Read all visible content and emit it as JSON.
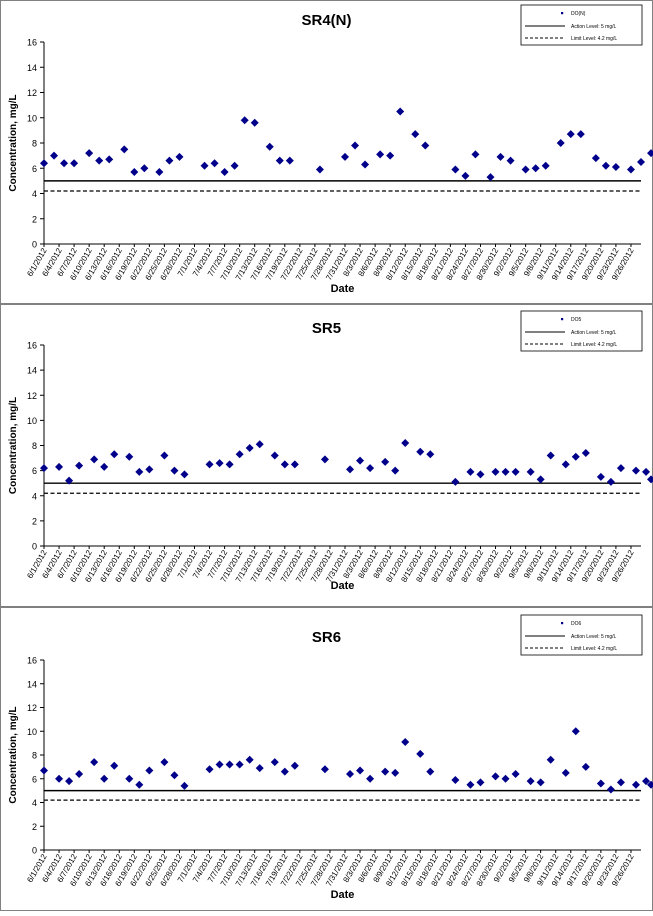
{
  "tick_dates": [
    "6/1/2012",
    "6/4/2012",
    "6/7/2012",
    "6/10/2012",
    "6/13/2012",
    "6/16/2012",
    "6/19/2012",
    "6/22/2012",
    "6/25/2012",
    "6/28/2012",
    "7/1/2012",
    "7/4/2012",
    "7/7/2012",
    "7/10/2012",
    "7/13/2012",
    "7/16/2012",
    "7/19/2012",
    "7/22/2012",
    "7/25/2012",
    "7/28/2012",
    "7/31/2012",
    "8/3/2012",
    "8/6/2012",
    "8/9/2012",
    "8/12/2012",
    "8/15/2012",
    "8/18/2012",
    "8/21/2012",
    "8/24/2012",
    "8/27/2012",
    "8/30/2012",
    "9/2/2012",
    "9/5/2012",
    "9/8/2012",
    "9/11/2012",
    "9/14/2012",
    "9/17/2012",
    "9/20/2012",
    "9/23/2012",
    "9/26/2012"
  ],
  "colors": {
    "marker": "#00008b",
    "action_line": "#000000",
    "limit_line": "#000000",
    "frame": "#808080"
  },
  "chart_data": [
    {
      "type": "scatter",
      "title": "SR4(N)",
      "xlabel": "Date",
      "ylabel": "Concentration, mg/L",
      "ylim": [
        0,
        16
      ],
      "yticks": [
        0,
        2,
        4,
        6,
        8,
        10,
        12,
        14,
        16
      ],
      "x_range_days": [
        0,
        119
      ],
      "grid": false,
      "legend": {
        "position": "top-right",
        "entries": [
          "DO(N)",
          "Action Level: 5 mg/L",
          "Limit Level: 4.2 mg/L"
        ]
      },
      "action_level": 5,
      "limit_level": 4.2,
      "series": [
        {
          "name": "DO(N)",
          "x": [
            "6/1/2012",
            "6/3/2012",
            "6/5/2012",
            "6/7/2012",
            "6/10/2012",
            "6/12/2012",
            "6/14/2012",
            "6/17/2012",
            "6/19/2012",
            "6/21/2012",
            "6/24/2012",
            "6/26/2012",
            "6/28/2012",
            "7/3/2012",
            "7/5/2012",
            "7/7/2012",
            "7/9/2012",
            "7/11/2012",
            "7/13/2012",
            "7/16/2012",
            "7/18/2012",
            "7/20/2012",
            "7/26/2012",
            "7/31/2012",
            "8/2/2012",
            "8/4/2012",
            "8/7/2012",
            "8/9/2012",
            "8/11/2012",
            "8/14/2012",
            "8/16/2012",
            "8/22/2012",
            "8/24/2012",
            "8/26/2012",
            "8/29/2012",
            "8/31/2012",
            "9/2/2012",
            "9/5/2012",
            "9/7/2012",
            "9/9/2012",
            "9/12/2012",
            "9/14/2012",
            "9/16/2012",
            "9/19/2012",
            "9/21/2012",
            "9/23/2012",
            "9/26/2012",
            "9/28/2012",
            "9/30/2012"
          ],
          "y": [
            6.4,
            7.0,
            6.4,
            6.4,
            7.2,
            6.6,
            6.7,
            7.5,
            5.7,
            6.0,
            5.7,
            6.6,
            6.9,
            6.2,
            6.4,
            5.7,
            6.2,
            9.8,
            9.6,
            7.7,
            6.6,
            6.6,
            5.9,
            6.9,
            7.8,
            6.3,
            7.1,
            7.0,
            10.5,
            8.7,
            7.8,
            5.9,
            5.4,
            7.1,
            5.3,
            6.9,
            6.6,
            5.9,
            6.0,
            6.2,
            8.0,
            8.7,
            8.7,
            6.8,
            6.2,
            6.1,
            5.9,
            6.5,
            7.2
          ]
        }
      ]
    },
    {
      "type": "scatter",
      "title": "SR5",
      "xlabel": "Date",
      "ylabel": "Concentration, mg/L",
      "ylim": [
        0,
        16
      ],
      "yticks": [
        0,
        2,
        4,
        6,
        8,
        10,
        12,
        14,
        16
      ],
      "x_range_days": [
        0,
        119
      ],
      "grid": false,
      "legend": {
        "position": "top-right",
        "entries": [
          "DO5",
          "Action Level: 5 mg/L",
          "Limit Level: 4.2 mg/L"
        ]
      },
      "action_level": 5,
      "limit_level": 4.2,
      "series": [
        {
          "name": "DO5",
          "x": [
            "6/1/2012",
            "6/4/2012",
            "6/6/2012",
            "6/8/2012",
            "6/11/2012",
            "6/13/2012",
            "6/15/2012",
            "6/18/2012",
            "6/20/2012",
            "6/22/2012",
            "6/25/2012",
            "6/27/2012",
            "6/29/2012",
            "7/4/2012",
            "7/6/2012",
            "7/8/2012",
            "7/10/2012",
            "7/12/2012",
            "7/14/2012",
            "7/17/2012",
            "7/19/2012",
            "7/21/2012",
            "7/27/2012",
            "8/1/2012",
            "8/3/2012",
            "8/5/2012",
            "8/8/2012",
            "8/10/2012",
            "8/12/2012",
            "8/15/2012",
            "8/17/2012",
            "8/22/2012",
            "8/25/2012",
            "8/27/2012",
            "8/30/2012",
            "9/1/2012",
            "9/3/2012",
            "9/6/2012",
            "9/8/2012",
            "9/10/2012",
            "9/13/2012",
            "9/15/2012",
            "9/17/2012",
            "9/20/2012",
            "9/22/2012",
            "9/24/2012",
            "9/27/2012",
            "9/29/2012",
            "9/30/2012"
          ],
          "y": [
            6.2,
            6.3,
            5.2,
            6.4,
            6.9,
            6.3,
            7.3,
            7.1,
            5.9,
            6.1,
            7.2,
            6.0,
            5.7,
            6.5,
            6.6,
            6.5,
            7.3,
            7.8,
            8.1,
            7.2,
            6.5,
            6.5,
            6.9,
            6.1,
            6.8,
            6.2,
            6.7,
            6.0,
            8.2,
            7.5,
            7.3,
            5.1,
            5.9,
            5.7,
            5.9,
            5.9,
            5.9,
            5.9,
            5.3,
            7.2,
            6.5,
            7.1,
            7.4,
            5.5,
            5.1,
            6.2,
            6.0,
            5.9,
            5.3
          ]
        }
      ]
    },
    {
      "type": "scatter",
      "title": "SR6",
      "xlabel": "Date",
      "ylabel": "Concentration, mg/L",
      "ylim": [
        0,
        16
      ],
      "yticks": [
        0,
        2,
        4,
        6,
        8,
        10,
        12,
        14,
        16
      ],
      "x_range_days": [
        0,
        119
      ],
      "grid": false,
      "legend": {
        "position": "top-right",
        "entries": [
          "DO6",
          "Action Level: 5 mg/L",
          "Limit Level: 4.2 mg/L"
        ]
      },
      "action_level": 5,
      "limit_level": 4.2,
      "series": [
        {
          "name": "DO6",
          "x": [
            "6/1/2012",
            "6/4/2012",
            "6/6/2012",
            "6/8/2012",
            "6/11/2012",
            "6/13/2012",
            "6/15/2012",
            "6/18/2012",
            "6/20/2012",
            "6/22/2012",
            "6/25/2012",
            "6/27/2012",
            "6/29/2012",
            "7/4/2012",
            "7/6/2012",
            "7/8/2012",
            "7/10/2012",
            "7/12/2012",
            "7/14/2012",
            "7/17/2012",
            "7/19/2012",
            "7/21/2012",
            "7/27/2012",
            "8/1/2012",
            "8/3/2012",
            "8/5/2012",
            "8/8/2012",
            "8/10/2012",
            "8/12/2012",
            "8/15/2012",
            "8/17/2012",
            "8/22/2012",
            "8/25/2012",
            "8/27/2012",
            "8/30/2012",
            "9/1/2012",
            "9/3/2012",
            "9/6/2012",
            "9/8/2012",
            "9/10/2012",
            "9/13/2012",
            "9/15/2012",
            "9/17/2012",
            "9/20/2012",
            "9/22/2012",
            "9/24/2012",
            "9/27/2012",
            "9/29/2012",
            "9/30/2012"
          ],
          "y": [
            6.7,
            6.0,
            5.8,
            6.4,
            7.4,
            6.0,
            7.1,
            6.0,
            5.5,
            6.7,
            7.4,
            6.3,
            5.4,
            6.8,
            7.2,
            7.2,
            7.2,
            7.6,
            6.9,
            7.4,
            6.6,
            7.1,
            6.8,
            6.4,
            6.7,
            6.0,
            6.6,
            6.5,
            9.1,
            8.1,
            6.6,
            5.9,
            5.5,
            5.7,
            6.2,
            6.0,
            6.4,
            5.8,
            5.7,
            7.6,
            6.5,
            10.0,
            7.0,
            5.6,
            5.1,
            5.7,
            5.5,
            5.8,
            5.5
          ]
        }
      ]
    }
  ]
}
